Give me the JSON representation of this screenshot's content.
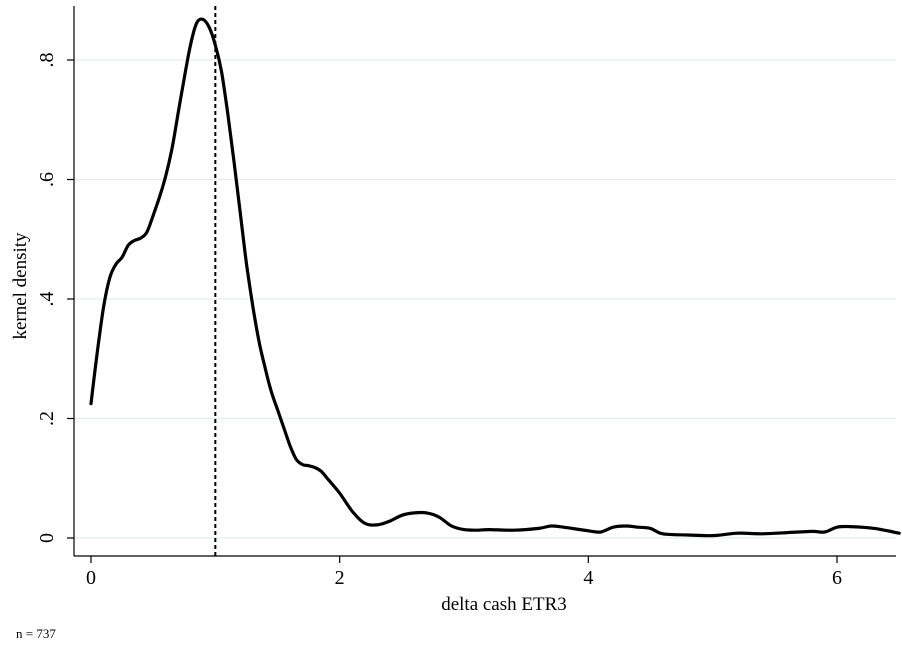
{
  "chart_data": {
    "type": "line",
    "title": "",
    "xlabel": "delta cash ETR3",
    "ylabel": "kernel density",
    "note": "n = 737",
    "xlim": [
      0,
      6.5
    ],
    "ylim": [
      0,
      0.88
    ],
    "x_ticks": [
      0,
      2,
      4,
      6
    ],
    "x_tick_labels": [
      "0",
      "2",
      "4",
      "6"
    ],
    "y_ticks": [
      0,
      0.2,
      0.4,
      0.6,
      0.8
    ],
    "y_tick_labels": [
      "0",
      ".2",
      ".4",
      ".6",
      ".8"
    ],
    "grid": true,
    "legend": "none",
    "reference_line": {
      "x": 1.0,
      "style": "dashed"
    },
    "series": [
      {
        "x": [
          0.0,
          0.05,
          0.1,
          0.15,
          0.2,
          0.25,
          0.3,
          0.35,
          0.4,
          0.45,
          0.5,
          0.55,
          0.6,
          0.65,
          0.7,
          0.75,
          0.8,
          0.85,
          0.9,
          0.95,
          1.0,
          1.05,
          1.1,
          1.15,
          1.2,
          1.25,
          1.3,
          1.35,
          1.4,
          1.45,
          1.5,
          1.55,
          1.6,
          1.65,
          1.7,
          1.75,
          1.8,
          1.85,
          1.9,
          2.0,
          2.1,
          2.2,
          2.3,
          2.4,
          2.5,
          2.6,
          2.7,
          2.8,
          2.9,
          3.0,
          3.1,
          3.2,
          3.4,
          3.6,
          3.7,
          3.8,
          4.0,
          4.1,
          4.2,
          4.3,
          4.4,
          4.5,
          4.6,
          4.8,
          5.0,
          5.2,
          5.4,
          5.6,
          5.8,
          5.9,
          6.0,
          6.1,
          6.3,
          6.5
        ],
        "y": [
          0.225,
          0.31,
          0.385,
          0.435,
          0.458,
          0.47,
          0.49,
          0.498,
          0.502,
          0.512,
          0.54,
          0.57,
          0.605,
          0.65,
          0.71,
          0.77,
          0.825,
          0.862,
          0.868,
          0.855,
          0.825,
          0.78,
          0.71,
          0.63,
          0.545,
          0.46,
          0.39,
          0.33,
          0.285,
          0.245,
          0.215,
          0.185,
          0.155,
          0.132,
          0.123,
          0.121,
          0.118,
          0.112,
          0.1,
          0.075,
          0.045,
          0.025,
          0.022,
          0.028,
          0.038,
          0.042,
          0.042,
          0.035,
          0.02,
          0.014,
          0.013,
          0.014,
          0.013,
          0.016,
          0.02,
          0.018,
          0.012,
          0.01,
          0.018,
          0.02,
          0.018,
          0.016,
          0.007,
          0.005,
          0.004,
          0.008,
          0.007,
          0.009,
          0.011,
          0.01,
          0.018,
          0.019,
          0.016,
          0.008
        ]
      }
    ]
  }
}
